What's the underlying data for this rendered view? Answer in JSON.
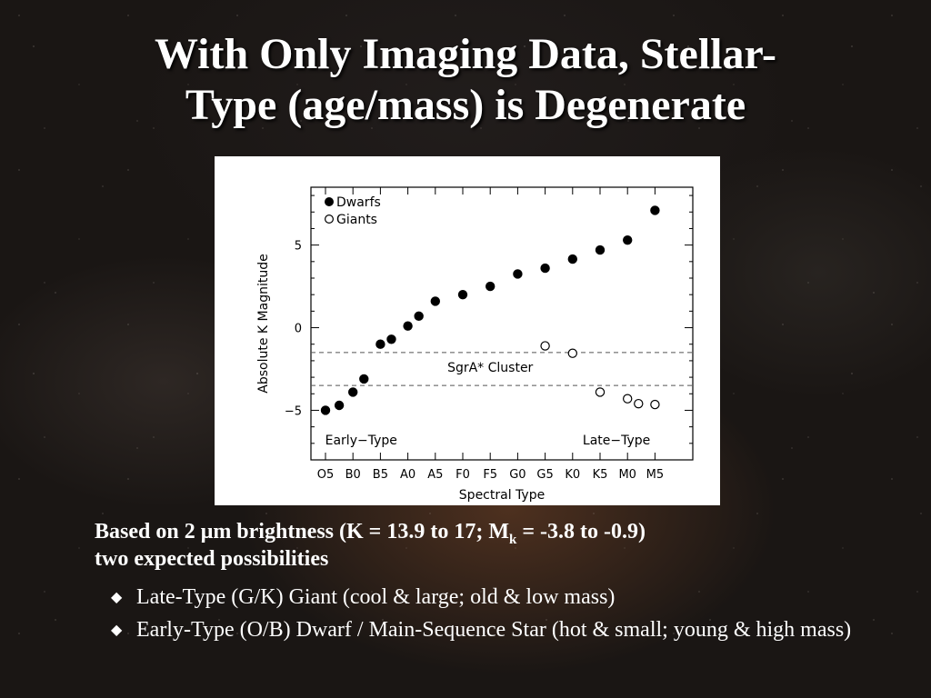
{
  "title_line1": "With Only Imaging Data, Stellar-",
  "title_line2": "Type (age/mass) is Degenerate",
  "chart_data": {
    "type": "scatter",
    "xlabel": "Spectral Type",
    "ylabel": "Absolute K Magnitude",
    "categories": [
      "O5",
      "B0",
      "B5",
      "A0",
      "A5",
      "F0",
      "F5",
      "G0",
      "G5",
      "K0",
      "K5",
      "M0",
      "M5"
    ],
    "x_ticks": [
      0,
      1,
      2,
      3,
      4,
      5,
      6,
      7,
      8,
      9,
      10,
      11,
      12
    ],
    "ylim": [
      -8,
      8.5
    ],
    "y_ticks": [
      5,
      0,
      -5
    ],
    "y_tick_labels": [
      "5",
      "0",
      "−5"
    ],
    "legend": {
      "placement": "top-left",
      "entries": [
        "Dwarfs",
        "Giants"
      ]
    },
    "series": [
      {
        "name": "Dwarfs",
        "marker": "filled-circle",
        "points": [
          [
            0,
            -5.0
          ],
          [
            0.5,
            -4.7
          ],
          [
            1.0,
            -3.9
          ],
          [
            1.4,
            -3.1
          ],
          [
            2.0,
            -1.0
          ],
          [
            2.4,
            -0.7
          ],
          [
            3.0,
            0.1
          ],
          [
            3.4,
            0.7
          ],
          [
            4.0,
            1.6
          ],
          [
            5.0,
            2.0
          ],
          [
            6.0,
            2.5
          ],
          [
            7.0,
            3.25
          ],
          [
            8.0,
            3.6
          ],
          [
            9.0,
            4.15
          ],
          [
            10.0,
            4.7
          ],
          [
            11.0,
            5.3
          ],
          [
            12.0,
            7.1
          ]
        ]
      },
      {
        "name": "Giants",
        "marker": "open-circle",
        "points": [
          [
            8.0,
            -1.1
          ],
          [
            9.0,
            -1.55
          ],
          [
            10.0,
            -3.9
          ],
          [
            11.0,
            -4.3
          ],
          [
            11.4,
            -4.6
          ],
          [
            12.0,
            -4.65
          ]
        ]
      }
    ],
    "reference_lines": [
      {
        "y": -1.5,
        "style": "dashed"
      },
      {
        "y": -3.5,
        "style": "dashed"
      }
    ],
    "annotations": [
      {
        "text": "SgrA* Cluster",
        "x": 6.0,
        "y": -2.4
      },
      {
        "text": "Early−Type",
        "x": 1.3,
        "y": -6.8
      },
      {
        "text": "Late−Type",
        "x": 10.6,
        "y": -6.8
      }
    ]
  },
  "body": {
    "lead_pre": "Based on 2 ",
    "lead_mu": "μ",
    "lead_mid": "m brightness (K = 13.9 to 17; M",
    "lead_sub": "k",
    "lead_post": " = -3.8 to -0.9)",
    "lead_line2": "two expected possibilities",
    "bullet_glyph": "◆",
    "bullets": [
      "Late-Type (G/K) Giant (cool & large; old & low mass)",
      "Early-Type (O/B) Dwarf / Main-Sequence Star (hot & small; young & high mass)"
    ]
  }
}
